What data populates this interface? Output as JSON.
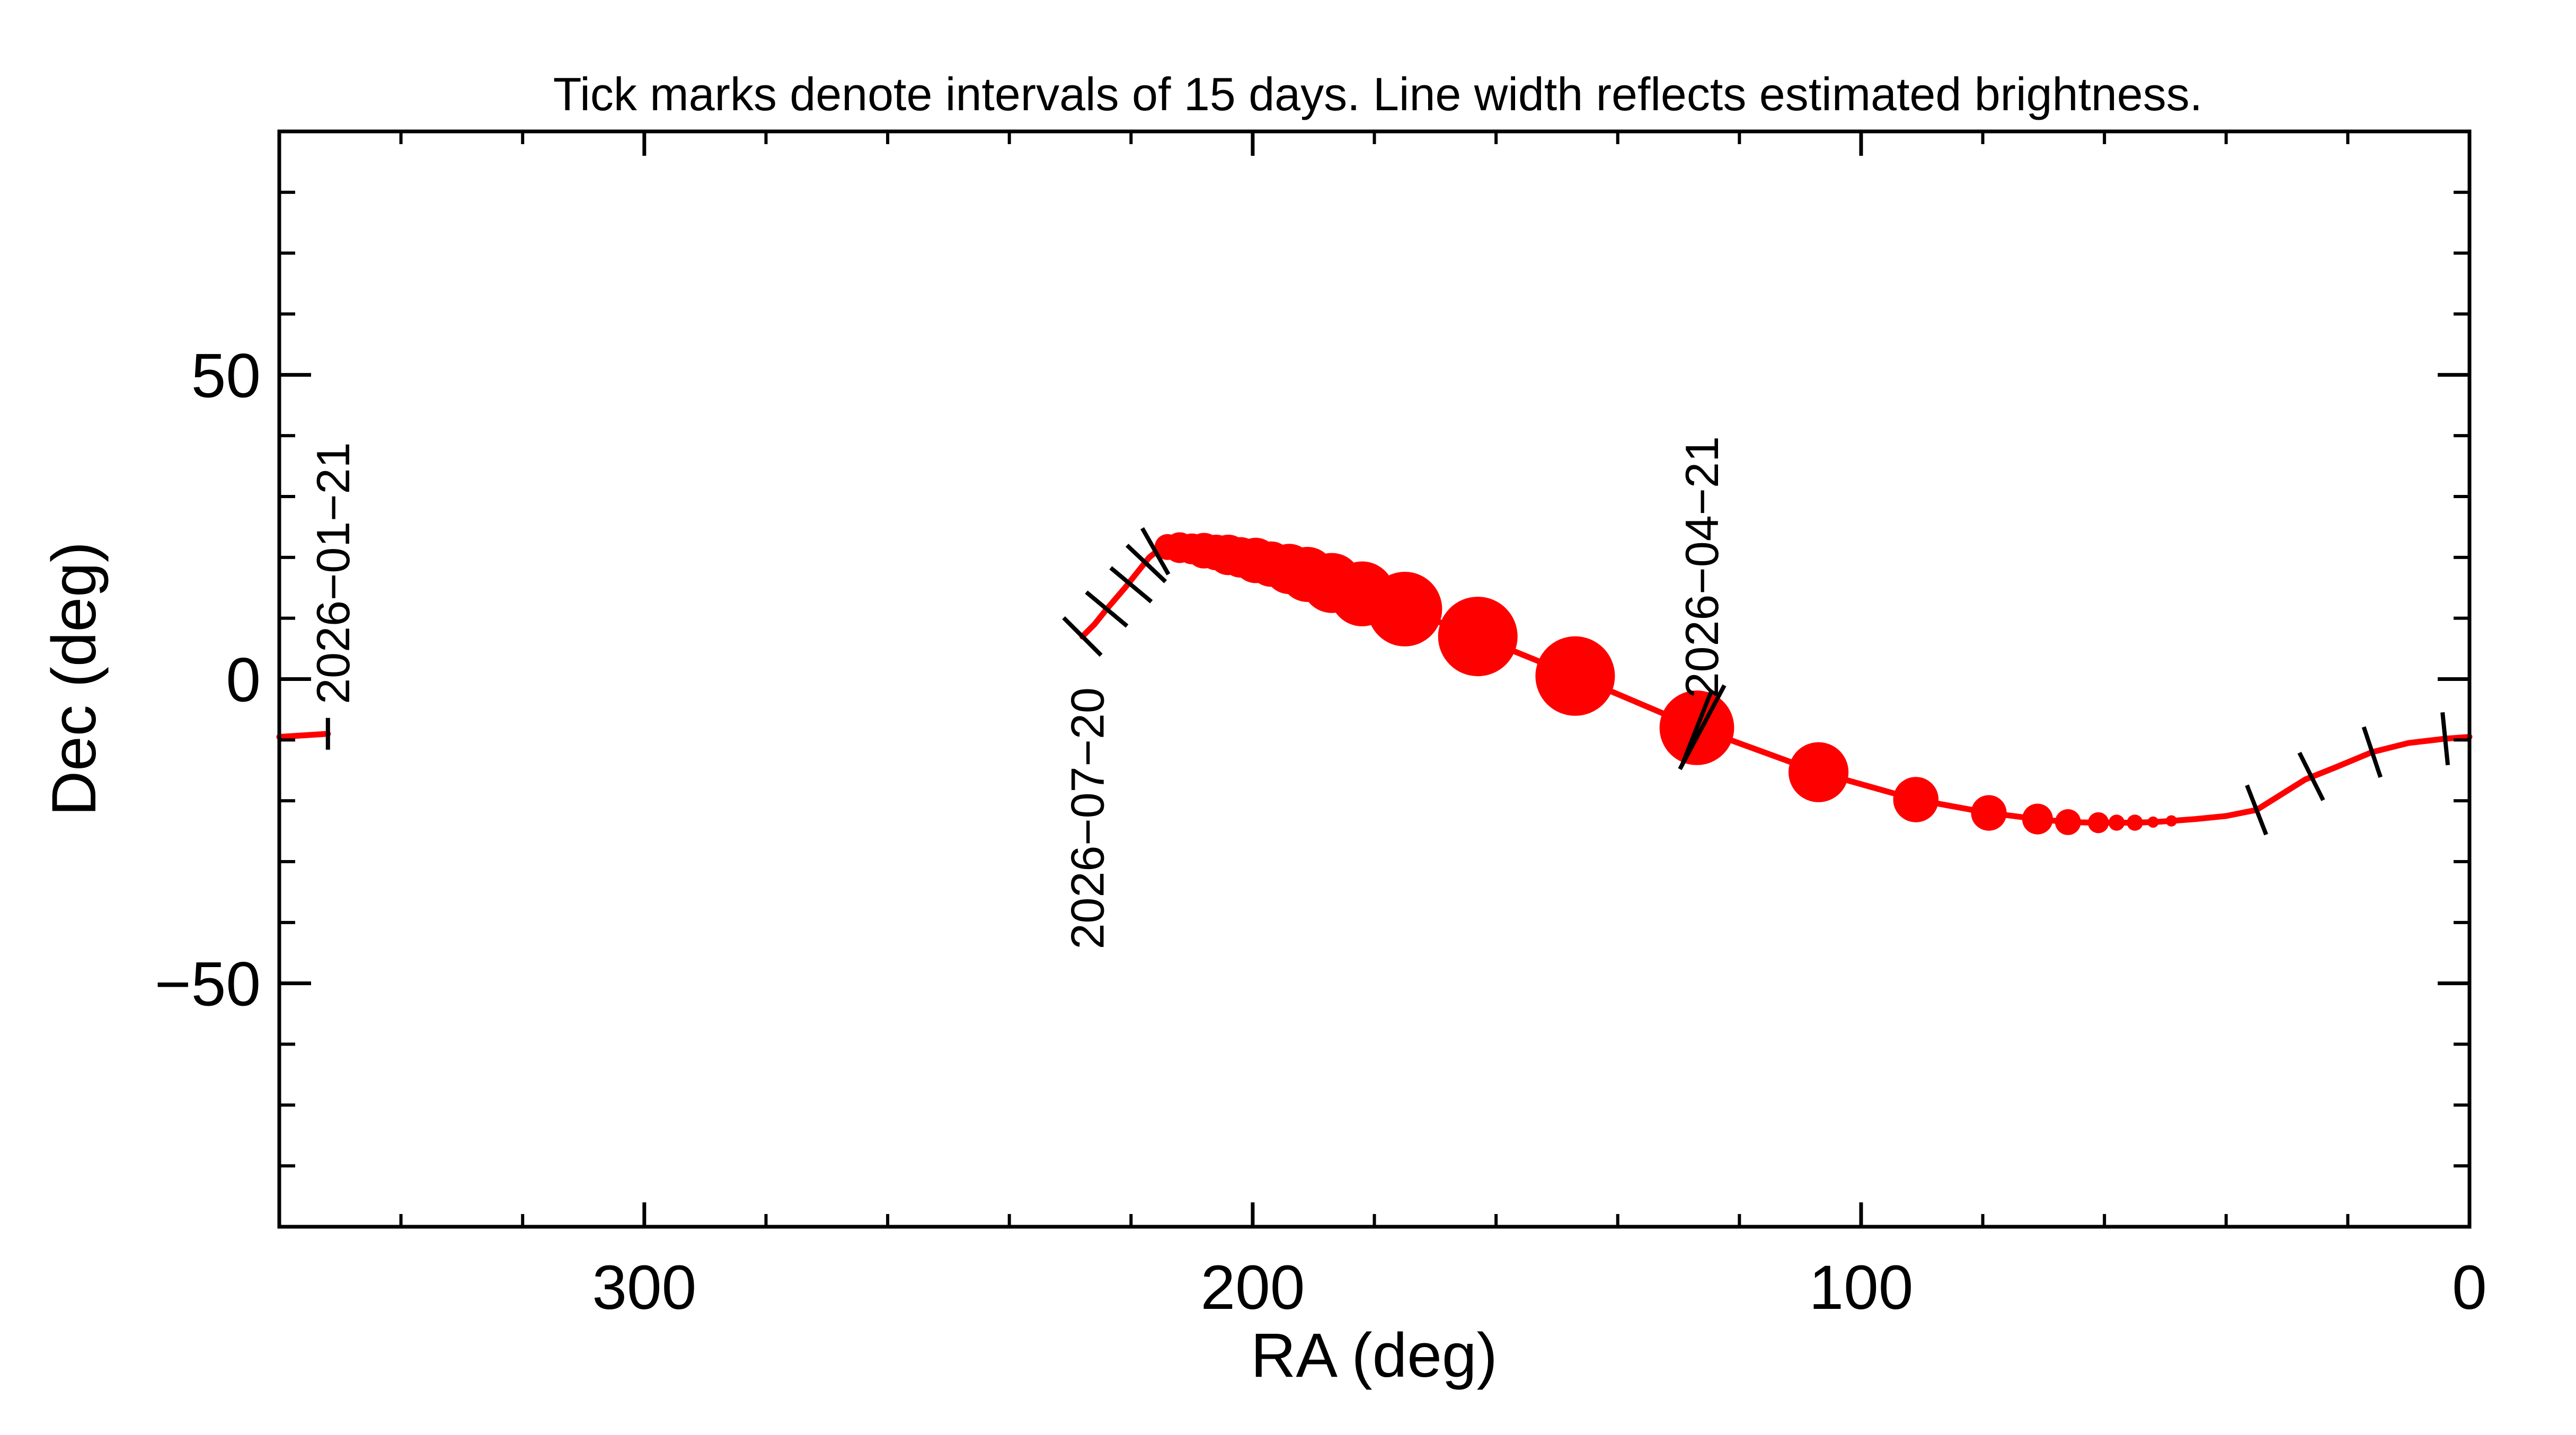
{
  "chart_data": {
    "type": "line",
    "title": "Tick marks denote intervals of 15 days.  Line width reflects estimated brightness.",
    "xlabel": "RA (deg)",
    "ylabel": "Dec (deg)",
    "xlim": [
      360,
      0
    ],
    "ylim": [
      -90,
      90
    ],
    "x_ticks": [
      300,
      200,
      100,
      0
    ],
    "x_tick_labels": [
      "300",
      "200",
      "100",
      "0"
    ],
    "y_ticks": [
      50,
      0,
      -50
    ],
    "y_tick_labels": [
      "50",
      "0",
      "−50"
    ],
    "grid": false,
    "colors": {
      "track": "#ff0000",
      "ticks": "#000000",
      "axes": "#000000"
    },
    "series": [
      {
        "points": [
          {
            "ra": 360,
            "dec": -9.5,
            "size": 0
          },
          {
            "ra": 352,
            "dec": -9.0,
            "size": 0
          }
        ]
      },
      {
        "points": [
          {
            "ra": 0,
            "dec": -9.5,
            "size": 0
          },
          {
            "ra": 4,
            "dec": -9.8,
            "size": 0
          },
          {
            "ra": 10,
            "dec": -10.5,
            "size": 0
          },
          {
            "ra": 16,
            "dec": -12.0,
            "size": 0
          },
          {
            "ra": 22,
            "dec": -14.5,
            "size": 0
          },
          {
            "ra": 27,
            "dec": -16.5,
            "size": 0
          },
          {
            "ra": 31,
            "dec": -19.0,
            "size": 0
          },
          {
            "ra": 35,
            "dec": -21.5,
            "size": 0
          },
          {
            "ra": 40,
            "dec": -22.5,
            "size": 0
          },
          {
            "ra": 45,
            "dec": -23.0,
            "size": 0
          },
          {
            "ra": 49,
            "dec": -23.3,
            "size": 1
          },
          {
            "ra": 52,
            "dec": -23.5,
            "size": 1
          },
          {
            "ra": 55,
            "dec": -23.6,
            "size": 2
          },
          {
            "ra": 58,
            "dec": -23.6,
            "size": 2
          },
          {
            "ra": 61,
            "dec": -23.6,
            "size": 3
          },
          {
            "ra": 66,
            "dec": -23.5,
            "size": 4
          },
          {
            "ra": 71,
            "dec": -23.0,
            "size": 5
          },
          {
            "ra": 79,
            "dec": -22.0,
            "size": 6
          },
          {
            "ra": 91,
            "dec": -19.8,
            "size": 8
          },
          {
            "ra": 107,
            "dec": -15.3,
            "size": 11
          },
          {
            "ra": 127,
            "dec": -8.0,
            "size": 14
          },
          {
            "ra": 147,
            "dec": 0.5,
            "size": 15
          },
          {
            "ra": 163,
            "dec": 7.0,
            "size": 15
          },
          {
            "ra": 175,
            "dec": 11.5,
            "size": 14
          },
          {
            "ra": 182,
            "dec": 14.0,
            "size": 12
          },
          {
            "ra": 187,
            "dec": 15.8,
            "size": 11
          },
          {
            "ra": 191,
            "dec": 17.2,
            "size": 10
          },
          {
            "ra": 194,
            "dec": 18.1,
            "size": 9
          },
          {
            "ra": 197,
            "dec": 18.9,
            "size": 8
          },
          {
            "ra": 199.5,
            "dec": 19.5,
            "size": 8
          },
          {
            "ra": 202,
            "dec": 20.0,
            "size": 7
          },
          {
            "ra": 204,
            "dec": 20.4,
            "size": 7
          },
          {
            "ra": 206,
            "dec": 20.8,
            "size": 6
          },
          {
            "ra": 208,
            "dec": 21.1,
            "size": 6
          },
          {
            "ra": 210,
            "dec": 21.4,
            "size": 5
          },
          {
            "ra": 212,
            "dec": 21.6,
            "size": 5
          },
          {
            "ra": 214,
            "dec": 21.7,
            "size": 4
          },
          {
            "ra": 215.5,
            "dec": 21.2,
            "size": 1
          },
          {
            "ra": 217,
            "dec": 20.0,
            "size": 0
          },
          {
            "ra": 219,
            "dec": 17.5,
            "size": 0
          },
          {
            "ra": 221,
            "dec": 15.0,
            "size": 0
          },
          {
            "ra": 224,
            "dec": 11.5,
            "size": 0
          },
          {
            "ra": 226,
            "dec": 9.0,
            "size": 0
          },
          {
            "ra": 228,
            "dec": 7.0,
            "size": 0
          }
        ]
      }
    ],
    "interval_ticks": [
      {
        "ra": 352,
        "dec": -9.0
      },
      {
        "ra": 228,
        "dec": 7.0
      },
      {
        "ra": 224,
        "dec": 11.5
      },
      {
        "ra": 220,
        "dec": 15.5
      },
      {
        "ra": 217.5,
        "dec": 19.0
      },
      {
        "ra": 216,
        "dec": 21.0
      },
      {
        "ra": 127,
        "dec": -8.0
      },
      {
        "ra": 35,
        "dec": -21.5
      },
      {
        "ra": 26,
        "dec": -16.0
      },
      {
        "ra": 16,
        "dec": -12.0
      },
      {
        "ra": 4,
        "dec": -9.8
      }
    ],
    "date_labels": [
      {
        "text": "2026−01−21",
        "ra": 352,
        "dec": -9.0,
        "position": "above"
      },
      {
        "text": "2026−07−20",
        "ra": 228,
        "dec": 7.0,
        "position": "below"
      },
      {
        "text": "2026−04−21",
        "ra": 127,
        "dec": -8.0,
        "position": "above"
      }
    ]
  }
}
